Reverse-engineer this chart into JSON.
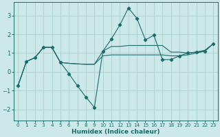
{
  "xlabel": "Humidex (Indice chaleur)",
  "bg_color": "#cce8e8",
  "line_color": "#1a6b6b",
  "grid_color": "#aacfcf",
  "xlim": [
    -0.5,
    23.5
  ],
  "ylim": [
    -2.6,
    3.7
  ],
  "yticks": [
    -2,
    -1,
    0,
    1,
    2,
    3
  ],
  "xticks": [
    0,
    1,
    2,
    3,
    4,
    5,
    6,
    7,
    8,
    9,
    10,
    11,
    12,
    13,
    14,
    15,
    16,
    17,
    18,
    19,
    20,
    21,
    22,
    23
  ],
  "s1_x": [
    0,
    1,
    2,
    3,
    4,
    5,
    6,
    7,
    8,
    9,
    10,
    11,
    12,
    13,
    14,
    15,
    16,
    17,
    18,
    19,
    20,
    21,
    22,
    23
  ],
  "s1_y": [
    -0.75,
    0.55,
    0.75,
    1.3,
    1.3,
    0.5,
    -0.1,
    -0.75,
    -1.35,
    -1.9,
    1.1,
    1.75,
    2.5,
    3.4,
    2.85,
    1.7,
    1.95,
    0.65,
    0.65,
    0.85,
    1.0,
    1.05,
    1.1,
    1.5
  ],
  "s2_x": [
    0,
    1,
    2,
    3,
    4,
    5,
    6,
    7,
    8,
    9,
    10,
    11,
    12,
    13,
    14,
    15,
    16,
    17,
    18,
    19,
    20,
    21,
    22,
    23
  ],
  "s2_y": [
    -0.75,
    0.55,
    0.75,
    1.3,
    1.3,
    0.5,
    0.45,
    0.42,
    0.4,
    0.4,
    1.1,
    1.35,
    1.35,
    1.4,
    1.4,
    1.4,
    1.4,
    1.4,
    1.05,
    1.05,
    1.0,
    1.05,
    1.15,
    1.5
  ],
  "s3_x": [
    0,
    1,
    2,
    3,
    4,
    5,
    6,
    7,
    8,
    9,
    10,
    11,
    12,
    13,
    14,
    15,
    16,
    17,
    18,
    19,
    20,
    21,
    22,
    23
  ],
  "s3_y": [
    -0.75,
    0.55,
    0.75,
    1.3,
    1.3,
    0.5,
    0.45,
    0.42,
    0.4,
    0.4,
    0.85,
    0.9,
    0.9,
    0.9,
    0.9,
    0.9,
    0.9,
    0.9,
    0.85,
    0.85,
    0.9,
    1.0,
    1.1,
    1.5
  ]
}
